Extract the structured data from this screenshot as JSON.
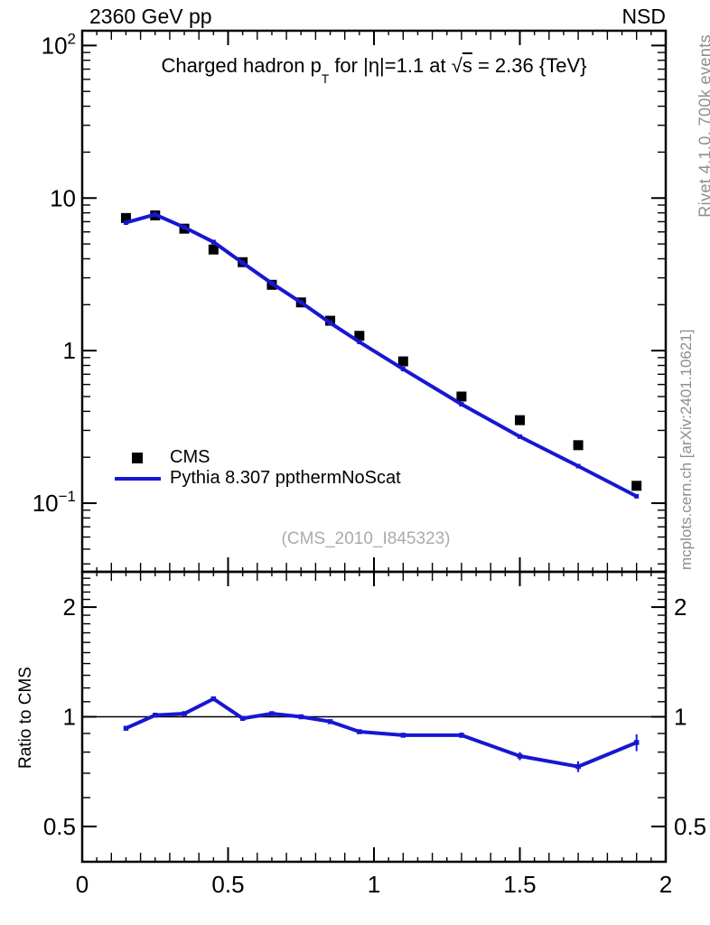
{
  "header": {
    "left": "2360 GeV pp",
    "right": "NSD"
  },
  "title": {
    "pre": "Charged hadron p",
    "sub": "T",
    "mid": " for |η|=1.1 at ",
    "sqrt_sign": "√",
    "sqrt_arg": "s",
    "post": " = 2.36 {TeV}"
  },
  "legend": {
    "entries": [
      {
        "label": "CMS",
        "marker": "black-filled-square"
      },
      {
        "label": "Pythia 8.307 ppthermNoScat",
        "marker": "blue-line"
      }
    ]
  },
  "watermark": "(CMS_2010_I845323)",
  "side_notes": {
    "top": "Rivet 4.1.0,  700k events",
    "bottom": "mcplots.cern.ch [arXiv:2401.10621]"
  },
  "colors": {
    "mc_blue": "#1717d1",
    "data_black": "#000000",
    "gray_note": "#8e8e8e",
    "watermark_gray": "#ababab",
    "axis_black": "#000000"
  },
  "chart_data": [
    {
      "type": "line",
      "panel": "main",
      "title": "Charged hadron pT for |η|=1.1 at √s = 2.36 {TeV}",
      "xscale": "linear",
      "yscale": "log",
      "xlim": [
        0,
        2
      ],
      "ylim": [
        0.0355,
        125
      ],
      "grid": false,
      "legend_position": "left-middle",
      "x": [
        0.15,
        0.25,
        0.35,
        0.45,
        0.55,
        0.65,
        0.75,
        0.85,
        0.95,
        1.1,
        1.3,
        1.5,
        1.7,
        1.9
      ],
      "series": [
        {
          "name": "CMS",
          "type": "scatter",
          "marker": "filled-square",
          "color": "#000000",
          "values": [
            7.4,
            7.7,
            6.3,
            4.6,
            3.8,
            2.7,
            2.07,
            1.57,
            1.25,
            0.85,
            0.5,
            0.35,
            0.24,
            0.13
          ]
        },
        {
          "name": "Pythia 8.307 ppthermNoScat",
          "type": "line",
          "marker": "small-square",
          "color": "#1717d1",
          "values": [
            6.9,
            7.8,
            6.43,
            5.15,
            3.76,
            2.76,
            2.07,
            1.52,
            1.14,
            0.757,
            0.445,
            0.273,
            0.175,
            0.111
          ]
        }
      ],
      "xticks": [
        {
          "value": 0,
          "label": "0"
        },
        {
          "value": 0.5,
          "label": "0.5"
        },
        {
          "value": 1,
          "label": "1"
        },
        {
          "value": 1.5,
          "label": "1.5"
        },
        {
          "value": 2,
          "label": "2"
        }
      ],
      "yticks": [
        {
          "value": 100,
          "base": "10",
          "exp": "2"
        },
        {
          "value": 10,
          "base": "10",
          "exp": ""
        },
        {
          "value": 1,
          "base": "1",
          "exp": ""
        },
        {
          "value": 0.1,
          "base": "10",
          "exp": "−1"
        }
      ]
    },
    {
      "type": "line",
      "panel": "ratio",
      "ylabel": "Ratio to CMS",
      "xscale": "linear",
      "yscale": "log",
      "xlim": [
        0,
        2
      ],
      "ylim": [
        0.4,
        2.5
      ],
      "reference_line": 1,
      "x": [
        0.15,
        0.25,
        0.35,
        0.45,
        0.55,
        0.65,
        0.75,
        0.85,
        0.95,
        1.1,
        1.3,
        1.5,
        1.7,
        1.9
      ],
      "series": [
        {
          "name": "Pythia 8.307 ppthermNoScat / CMS",
          "type": "line",
          "marker": "small-square",
          "color": "#1717d1",
          "values": [
            0.93,
            1.01,
            1.02,
            1.12,
            0.99,
            1.02,
            1.0,
            0.97,
            0.91,
            0.89,
            0.89,
            0.78,
            0.73,
            0.85
          ],
          "errors": [
            0.012,
            0.012,
            0.012,
            0.012,
            0.012,
            0.012,
            0.012,
            0.012,
            0.012,
            0.012,
            0.015,
            0.02,
            0.025,
            0.045
          ]
        }
      ],
      "xticks": [
        {
          "value": 0,
          "label": "0"
        },
        {
          "value": 0.5,
          "label": "0.5"
        },
        {
          "value": 1,
          "label": "1"
        },
        {
          "value": 1.5,
          "label": "1.5"
        },
        {
          "value": 2,
          "label": "2"
        }
      ],
      "yticks": [
        {
          "value": 2,
          "label": "2"
        },
        {
          "value": 1,
          "label": "1"
        },
        {
          "value": 0.5,
          "label": "0.5"
        }
      ]
    }
  ]
}
